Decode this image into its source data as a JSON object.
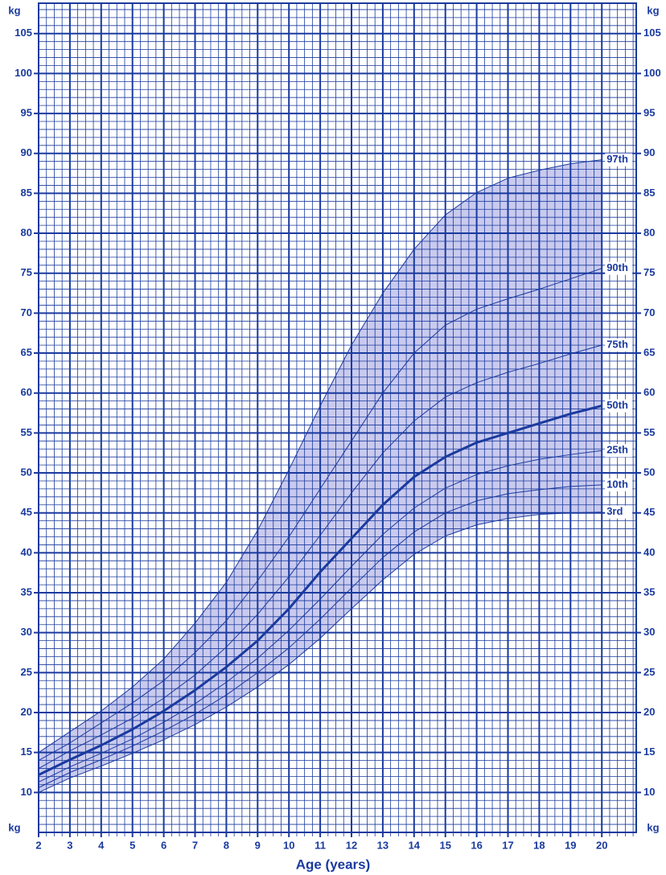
{
  "chart_data": {
    "type": "line",
    "x_label": "Age (years)",
    "y_unit": "kg",
    "x": [
      2,
      3,
      4,
      5,
      6,
      7,
      8,
      9,
      10,
      11,
      12,
      13,
      14,
      15,
      16,
      17,
      18,
      19,
      20
    ],
    "series": [
      {
        "name": "3rd",
        "color": "#1a3a9e",
        "width": 1,
        "values": [
          10.0,
          11.8,
          13.3,
          14.9,
          16.6,
          18.5,
          20.7,
          23.2,
          26,
          29.3,
          33,
          36.6,
          39.8,
          42.1,
          43.5,
          44.3,
          44.8,
          45,
          45.1
        ]
      },
      {
        "name": "10th",
        "color": "#1a3a9e",
        "width": 1,
        "values": [
          10.6,
          12.5,
          14.1,
          15.8,
          17.7,
          19.8,
          22.2,
          25,
          28.1,
          31.7,
          35.6,
          39.4,
          42.6,
          45,
          46.5,
          47.4,
          47.9,
          48.3,
          48.5
        ]
      },
      {
        "name": "25th",
        "color": "#1a3a9e",
        "width": 1,
        "values": [
          11.3,
          13.2,
          14.9,
          16.7,
          18.8,
          21.1,
          23.8,
          26.8,
          30.3,
          34.2,
          38.3,
          42.3,
          45.6,
          48.1,
          49.8,
          50.9,
          51.7,
          52.3,
          52.8
        ]
      },
      {
        "name": "50th",
        "color": "#1a3a9e",
        "width": 3,
        "values": [
          12.2,
          14.1,
          15.9,
          17.9,
          20.2,
          22.8,
          25.7,
          29,
          33,
          37.6,
          41.8,
          46,
          49.5,
          52,
          53.8,
          55,
          56.2,
          57.4,
          58.4
        ]
      },
      {
        "name": "75th",
        "color": "#1a3a9e",
        "width": 1,
        "values": [
          13,
          15.2,
          17.2,
          19.3,
          21.8,
          24.7,
          28.2,
          32.3,
          37,
          42.2,
          47.5,
          52.5,
          56.5,
          59.5,
          61.3,
          62.6,
          63.7,
          64.9,
          66
        ]
      },
      {
        "name": "90th",
        "color": "#1a3a9e",
        "width": 1,
        "values": [
          14,
          16.2,
          18.7,
          21.2,
          24,
          27.5,
          31.5,
          36.5,
          42,
          48,
          54,
          60,
          65,
          68.5,
          70.5,
          71.8,
          73,
          74.3,
          75.6
        ]
      },
      {
        "name": "97th",
        "color": "#1a3a9e",
        "width": 1,
        "values": [
          15,
          17.6,
          20.2,
          23.2,
          26.7,
          31.2,
          36.3,
          42.8,
          50.4,
          58.4,
          66,
          72.5,
          78,
          82.3,
          85.1,
          86.9,
          87.9,
          88.7,
          89.2
        ]
      }
    ],
    "band_color": "#c9caee",
    "grid_color": "#1a3a9e",
    "xlim": [
      2,
      21.1
    ],
    "ylim": [
      5,
      108.8
    ],
    "xticks": [
      2,
      3,
      4,
      5,
      6,
      7,
      8,
      9,
      10,
      11,
      12,
      13,
      14,
      15,
      16,
      17,
      18,
      19,
      20
    ],
    "yticks": [
      10,
      15,
      20,
      25,
      30,
      35,
      40,
      45,
      50,
      55,
      60,
      65,
      70,
      75,
      80,
      85,
      90,
      95,
      100,
      105
    ],
    "grid": true
  }
}
